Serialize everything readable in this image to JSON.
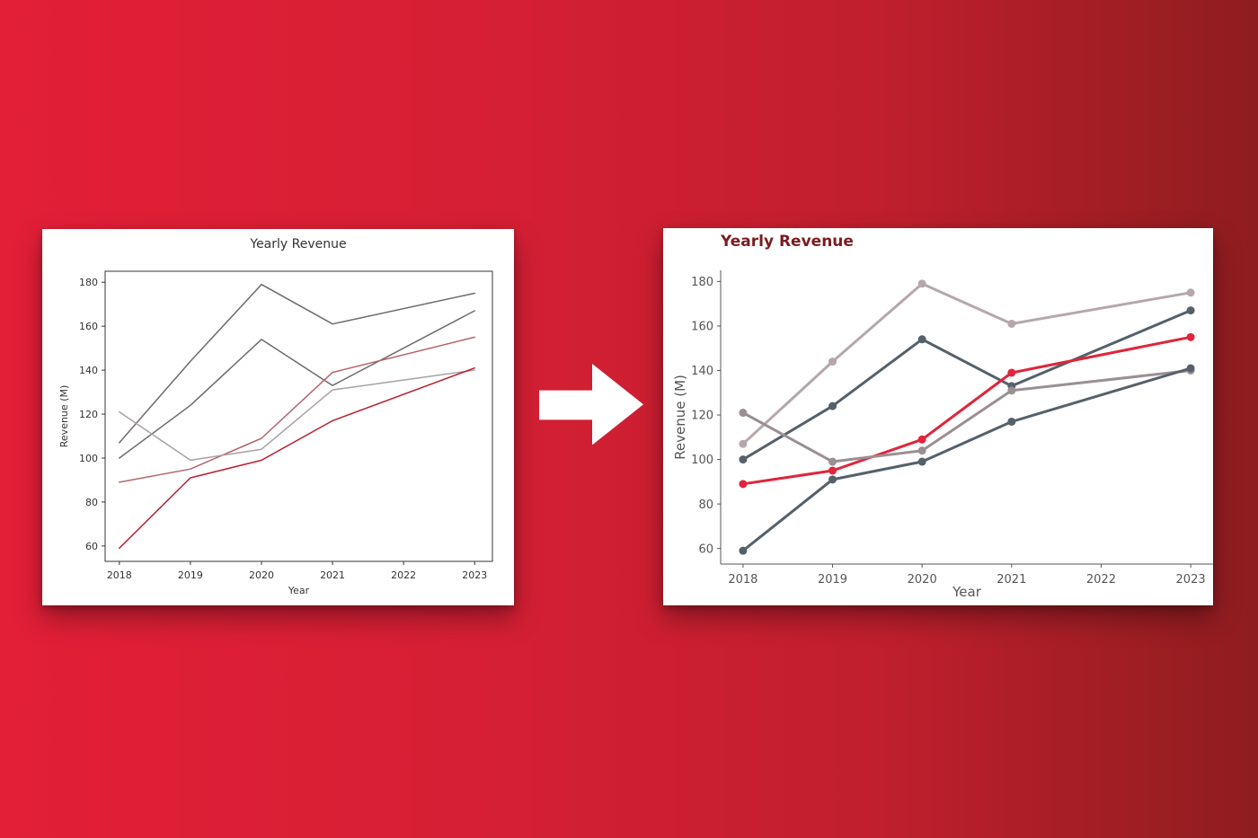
{
  "colors": {
    "background_left": "#e21f37",
    "background_right": "#8e1d1f",
    "accent_red": "#e0253c",
    "dark_gray": "#55606a",
    "light_gray": "#b5a7aa",
    "mid_gray": "#9a8f93",
    "title_red": "#7a1c21"
  },
  "icons": {
    "arrow": "right-arrow-icon"
  },
  "chart_data": [
    {
      "type": "line",
      "title": "Yearly Revenue",
      "xlabel": "Year",
      "ylabel": "Revenue (M)",
      "x": [
        2018,
        2019,
        2020,
        2021,
        2022,
        2023
      ],
      "xlim": [
        2017.8,
        2023.25
      ],
      "ylim": [
        53,
        185
      ],
      "yticks": [
        60,
        80,
        100,
        120,
        140,
        160,
        180
      ],
      "grid": false,
      "markers": false,
      "series": [
        {
          "x": [
            2018,
            2019,
            2020,
            2021,
            2023
          ],
          "values": [
            107,
            144,
            179,
            161,
            175
          ],
          "color": "#6b6b6b"
        },
        {
          "x": [
            2018,
            2019,
            2020,
            2021,
            2023
          ],
          "values": [
            100,
            124,
            154,
            133,
            167
          ],
          "color": "#6b6b6b"
        },
        {
          "x": [
            2018,
            2019,
            2020,
            2021,
            2023
          ],
          "values": [
            89,
            95,
            109,
            139,
            155
          ],
          "color": "#b3646c"
        },
        {
          "x": [
            2018,
            2019,
            2020,
            2021,
            2023
          ],
          "values": [
            121,
            99,
            104,
            131,
            140
          ],
          "color": "#a9a1a4"
        },
        {
          "x": [
            2018,
            2019,
            2020,
            2021,
            2023
          ],
          "values": [
            59,
            91,
            99,
            117,
            141
          ],
          "color": "#b8202f"
        }
      ]
    },
    {
      "type": "line",
      "title": "Yearly Revenue",
      "xlabel": "Year",
      "ylabel": "Revenue (M)",
      "x": [
        2018,
        2019,
        2020,
        2021,
        2022,
        2023
      ],
      "xlim": [
        2017.75,
        2023.25
      ],
      "ylim": [
        53,
        185
      ],
      "yticks": [
        60,
        80,
        100,
        120,
        140,
        160,
        180
      ],
      "grid": false,
      "markers": true,
      "series": [
        {
          "x": [
            2018,
            2019,
            2020,
            2021,
            2023
          ],
          "values": [
            107,
            144,
            179,
            161,
            175
          ],
          "color": "#b5a7aa"
        },
        {
          "x": [
            2018,
            2019,
            2020,
            2021,
            2023
          ],
          "values": [
            100,
            124,
            154,
            133,
            167
          ],
          "color": "#55606a"
        },
        {
          "x": [
            2018,
            2019,
            2020,
            2021,
            2023
          ],
          "values": [
            89,
            95,
            109,
            139,
            155
          ],
          "color": "#e0253c"
        },
        {
          "x": [
            2018,
            2019,
            2020,
            2021,
            2023
          ],
          "values": [
            121,
            99,
            104,
            131,
            140
          ],
          "color": "#9a8f93"
        },
        {
          "x": [
            2018,
            2019,
            2020,
            2021,
            2023
          ],
          "values": [
            59,
            91,
            99,
            117,
            141
          ],
          "color": "#55606a"
        }
      ]
    }
  ]
}
